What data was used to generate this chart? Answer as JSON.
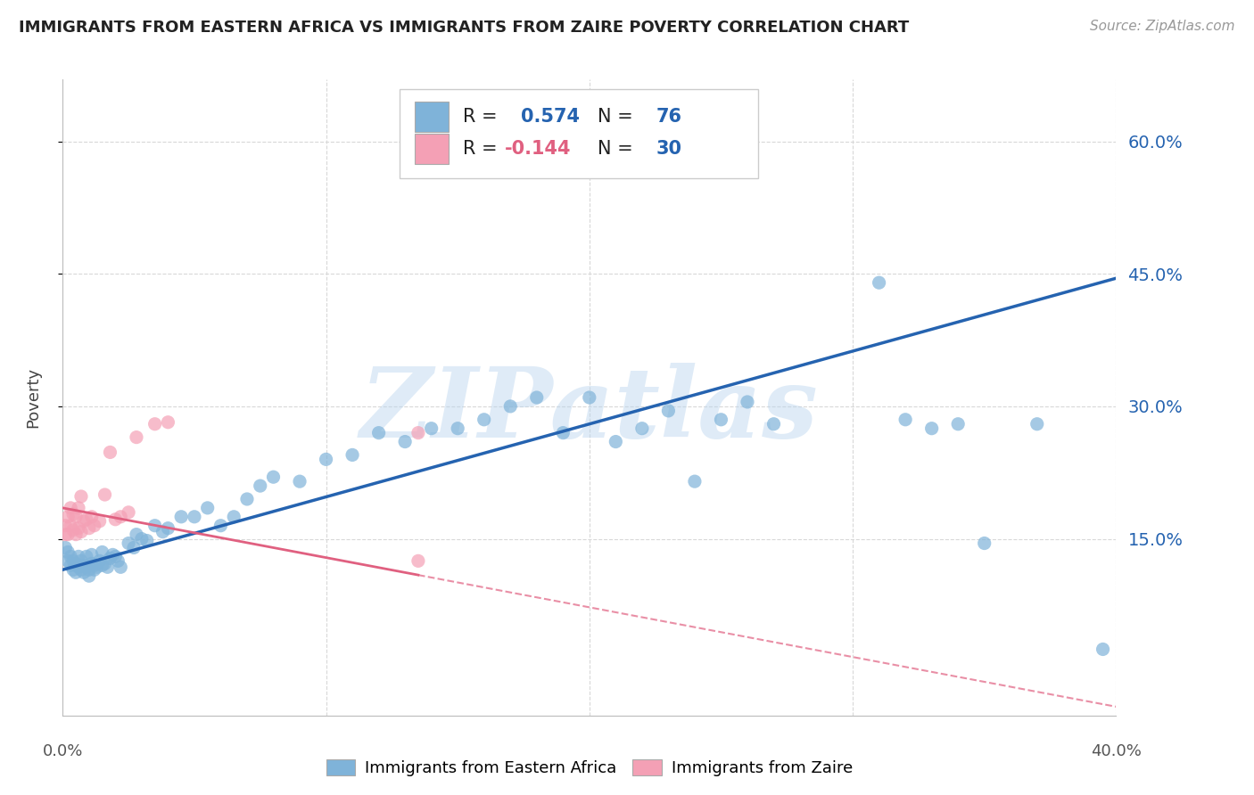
{
  "title": "IMMIGRANTS FROM EASTERN AFRICA VS IMMIGRANTS FROM ZAIRE POVERTY CORRELATION CHART",
  "source": "Source: ZipAtlas.com",
  "ylabel": "Poverty",
  "xlim": [
    0.0,
    0.4
  ],
  "ylim": [
    -0.05,
    0.67
  ],
  "yticks": [
    0.15,
    0.3,
    0.45,
    0.6
  ],
  "ytick_labels": [
    "15.0%",
    "30.0%",
    "45.0%",
    "60.0%"
  ],
  "blue_color": "#7fb3d9",
  "pink_color": "#f4a0b5",
  "blue_line_color": "#2563b0",
  "pink_line_color": "#e06080",
  "legend1_label": "Immigrants from Eastern Africa",
  "legend2_label": "Immigrants from Zaire",
  "watermark": "ZIPatlas",
  "watermark_color": "#b8d4ee",
  "background": "#ffffff",
  "grid_color": "#d8d8d8",
  "blue_line_x0": 0.0,
  "blue_line_y0": 0.115,
  "blue_line_x1": 0.4,
  "blue_line_y1": 0.445,
  "pink_line_x0": 0.0,
  "pink_line_y0": 0.185,
  "pink_line_x1": 0.4,
  "pink_line_y1": -0.04,
  "blue_x": [
    0.001,
    0.002,
    0.002,
    0.003,
    0.003,
    0.004,
    0.004,
    0.005,
    0.005,
    0.006,
    0.006,
    0.007,
    0.007,
    0.008,
    0.008,
    0.009,
    0.009,
    0.01,
    0.01,
    0.011,
    0.011,
    0.012,
    0.012,
    0.013,
    0.014,
    0.015,
    0.015,
    0.016,
    0.017,
    0.018,
    0.019,
    0.02,
    0.021,
    0.022,
    0.025,
    0.027,
    0.028,
    0.03,
    0.032,
    0.035,
    0.038,
    0.04,
    0.045,
    0.05,
    0.055,
    0.06,
    0.065,
    0.07,
    0.075,
    0.08,
    0.09,
    0.1,
    0.11,
    0.12,
    0.13,
    0.14,
    0.15,
    0.16,
    0.17,
    0.18,
    0.19,
    0.2,
    0.21,
    0.22,
    0.23,
    0.24,
    0.25,
    0.26,
    0.27,
    0.31,
    0.32,
    0.33,
    0.34,
    0.35,
    0.37,
    0.395
  ],
  "blue_y": [
    0.14,
    0.135,
    0.125,
    0.13,
    0.12,
    0.125,
    0.115,
    0.122,
    0.112,
    0.118,
    0.13,
    0.115,
    0.125,
    0.12,
    0.112,
    0.118,
    0.13,
    0.115,
    0.108,
    0.122,
    0.132,
    0.12,
    0.115,
    0.118,
    0.125,
    0.12,
    0.135,
    0.122,
    0.118,
    0.128,
    0.132,
    0.13,
    0.125,
    0.118,
    0.145,
    0.14,
    0.155,
    0.15,
    0.148,
    0.165,
    0.158,
    0.162,
    0.175,
    0.175,
    0.185,
    0.165,
    0.175,
    0.195,
    0.21,
    0.22,
    0.215,
    0.24,
    0.245,
    0.27,
    0.26,
    0.275,
    0.275,
    0.285,
    0.3,
    0.31,
    0.27,
    0.31,
    0.26,
    0.275,
    0.295,
    0.215,
    0.285,
    0.305,
    0.28,
    0.44,
    0.285,
    0.275,
    0.28,
    0.145,
    0.28,
    0.025
  ],
  "pink_x": [
    0.001,
    0.001,
    0.002,
    0.002,
    0.003,
    0.003,
    0.004,
    0.004,
    0.005,
    0.005,
    0.006,
    0.006,
    0.007,
    0.007,
    0.008,
    0.009,
    0.01,
    0.011,
    0.012,
    0.014,
    0.016,
    0.018,
    0.02,
    0.022,
    0.025,
    0.028,
    0.035,
    0.04,
    0.135,
    0.135
  ],
  "pink_y": [
    0.155,
    0.165,
    0.155,
    0.175,
    0.165,
    0.185,
    0.16,
    0.178,
    0.155,
    0.175,
    0.162,
    0.185,
    0.158,
    0.198,
    0.17,
    0.172,
    0.162,
    0.175,
    0.165,
    0.17,
    0.2,
    0.248,
    0.172,
    0.175,
    0.18,
    0.265,
    0.28,
    0.282,
    0.125,
    0.27
  ]
}
